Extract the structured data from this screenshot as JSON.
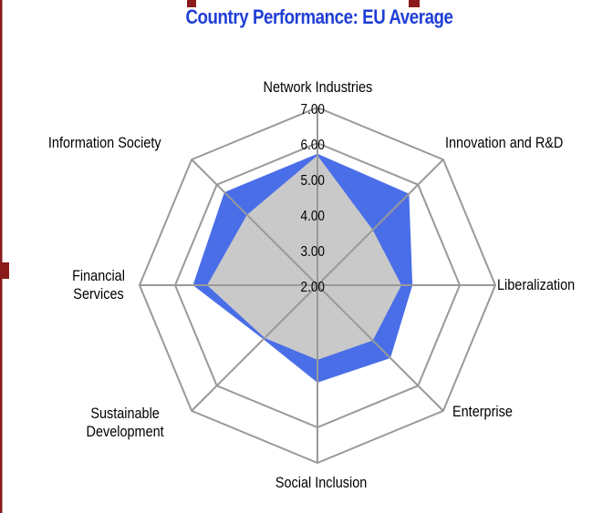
{
  "chart_data": {
    "type": "radar",
    "title": "Country Performance: EU Average",
    "categories": [
      "Network Industries",
      "Innovation and R&D",
      "Liberalization",
      "Enterprise",
      "Social Inclusion",
      "Sustainable\nDevelopment",
      "Financial\nServices",
      "Information Society"
    ],
    "series": [
      {
        "color": "#4a6ee8",
        "values": [
          5.7,
          5.64,
          4.67,
          4.9,
          4.74,
          4.15,
          5.5,
          5.7
        ]
      },
      {
        "color": "#c9c9c9",
        "values": [
          5.65,
          4.2,
          4.36,
          4.2,
          4.1,
          4.1,
          5.1,
          4.8
        ]
      }
    ],
    "ylim": [
      2,
      7
    ],
    "yticks": [
      {
        "value": 2,
        "label": "2.00"
      },
      {
        "value": 3,
        "label": "3.00"
      },
      {
        "value": 4,
        "label": "4.00"
      },
      {
        "value": 5,
        "label": "5.00"
      },
      {
        "value": 6,
        "label": "6.00"
      },
      {
        "value": 7,
        "label": "7.00"
      }
    ],
    "grid": true
  }
}
